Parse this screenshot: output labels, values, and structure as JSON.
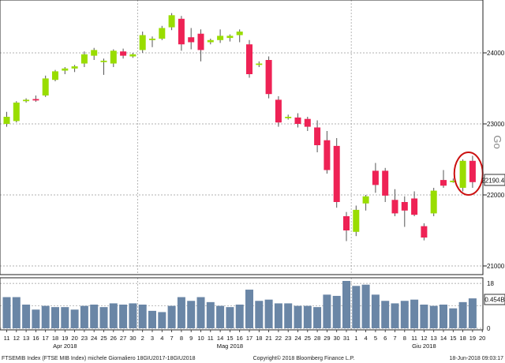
{
  "chart_data": {
    "type": "candlestick",
    "title": "",
    "price_axis": {
      "min": 20900,
      "max": 24700,
      "ticks": [
        21000,
        22000,
        23000,
        24000
      ],
      "last_value_label": "22190.45",
      "side_label": "Go"
    },
    "volume_axis": {
      "min": 0,
      "max": 19,
      "ticks": [
        18,
        0
      ],
      "tick_labels": [
        "18",
        "0"
      ],
      "extra_label": "0.454B"
    },
    "x_tick_labels": [
      "11",
      "12",
      "13",
      "16",
      "17",
      "18",
      "19",
      "20",
      "23",
      "24",
      "25",
      "26",
      "27",
      "30",
      "2",
      "3",
      "4",
      "7",
      "8",
      "9",
      "10",
      "11",
      "14",
      "15",
      "16",
      "17",
      "18",
      "21",
      "22",
      "23",
      "24",
      "25",
      "28",
      "29",
      "30",
      "31",
      "1",
      "4",
      "5",
      "6",
      "7",
      "8",
      "11",
      "12",
      "13",
      "14",
      "15",
      "18",
      "19",
      "20"
    ],
    "month_labels": [
      {
        "label": "Apr 2018",
        "at": 6
      },
      {
        "label": "Mag 2018",
        "at": 23
      },
      {
        "label": "Giu 2018",
        "at": 43
      }
    ],
    "candles": [
      {
        "open": 23000,
        "high": 23170,
        "low": 22960,
        "close": 23100
      },
      {
        "open": 23040,
        "high": 23320,
        "low": 23020,
        "close": 23300
      },
      {
        "open": 23320,
        "high": 23360,
        "low": 23300,
        "close": 23340
      },
      {
        "open": 23350,
        "high": 23400,
        "low": 23310,
        "close": 23330
      },
      {
        "open": 23400,
        "high": 23680,
        "low": 23380,
        "close": 23640
      },
      {
        "open": 23620,
        "high": 23760,
        "low": 23600,
        "close": 23740
      },
      {
        "open": 23750,
        "high": 23800,
        "low": 23700,
        "close": 23780
      },
      {
        "open": 23780,
        "high": 23830,
        "low": 23730,
        "close": 23810
      },
      {
        "open": 23850,
        "high": 24020,
        "low": 23800,
        "close": 23980
      },
      {
        "open": 23960,
        "high": 24070,
        "low": 23900,
        "close": 24040
      },
      {
        "open": 23870,
        "high": 23920,
        "low": 23690,
        "close": 23890
      },
      {
        "open": 23850,
        "high": 24050,
        "low": 23800,
        "close": 24030
      },
      {
        "open": 24020,
        "high": 24060,
        "low": 23920,
        "close": 23960
      },
      {
        "open": 23950,
        "high": 24000,
        "low": 23930,
        "close": 23980
      },
      {
        "open": 24040,
        "high": 24300,
        "low": 24000,
        "close": 24250
      },
      {
        "open": 24180,
        "high": 24230,
        "low": 24080,
        "close": 24200
      },
      {
        "open": 24200,
        "high": 24380,
        "low": 24180,
        "close": 24350
      },
      {
        "open": 24360,
        "high": 24560,
        "low": 24320,
        "close": 24530
      },
      {
        "open": 24480,
        "high": 24520,
        "low": 24030,
        "close": 24120
      },
      {
        "open": 24220,
        "high": 24350,
        "low": 24050,
        "close": 24150
      },
      {
        "open": 24270,
        "high": 24330,
        "low": 23880,
        "close": 24040
      },
      {
        "open": 24150,
        "high": 24200,
        "low": 24120,
        "close": 24180
      },
      {
        "open": 24180,
        "high": 24330,
        "low": 24140,
        "close": 24240
      },
      {
        "open": 24210,
        "high": 24260,
        "low": 24160,
        "close": 24240
      },
      {
        "open": 24250,
        "high": 24330,
        "low": 24150,
        "close": 24300
      },
      {
        "open": 24120,
        "high": 24180,
        "low": 23650,
        "close": 23700
      },
      {
        "open": 23830,
        "high": 23880,
        "low": 23800,
        "close": 23850
      },
      {
        "open": 23900,
        "high": 23950,
        "low": 23360,
        "close": 23420
      },
      {
        "open": 23340,
        "high": 23390,
        "low": 22960,
        "close": 23020
      },
      {
        "open": 23080,
        "high": 23130,
        "low": 23060,
        "close": 23100
      },
      {
        "open": 23090,
        "high": 23150,
        "low": 22950,
        "close": 23000
      },
      {
        "open": 23070,
        "high": 23100,
        "low": 22900,
        "close": 22960
      },
      {
        "open": 22950,
        "high": 23050,
        "low": 22600,
        "close": 22700
      },
      {
        "open": 22770,
        "high": 22900,
        "low": 22300,
        "close": 22350
      },
      {
        "open": 22690,
        "high": 22800,
        "low": 21820,
        "close": 21900
      },
      {
        "open": 21700,
        "high": 21760,
        "low": 21350,
        "close": 21500
      },
      {
        "open": 21480,
        "high": 21850,
        "low": 21420,
        "close": 21790
      },
      {
        "open": 21880,
        "high": 22000,
        "low": 21780,
        "close": 21980
      },
      {
        "open": 22340,
        "high": 22450,
        "low": 22030,
        "close": 22140
      },
      {
        "open": 22340,
        "high": 22380,
        "low": 21900,
        "close": 21990
      },
      {
        "open": 21930,
        "high": 22080,
        "low": 21700,
        "close": 21740
      },
      {
        "open": 21900,
        "high": 21980,
        "low": 21550,
        "close": 21780
      },
      {
        "open": 21950,
        "high": 22050,
        "low": 21700,
        "close": 21720
      },
      {
        "open": 21560,
        "high": 21600,
        "low": 21360,
        "close": 21400
      },
      {
        "open": 21740,
        "high": 22100,
        "low": 21700,
        "close": 22060
      },
      {
        "open": 22210,
        "high": 22350,
        "low": 22100,
        "close": 22130
      },
      {
        "open": 22180,
        "high": 22230,
        "low": 22170,
        "close": 22200
      },
      {
        "open": 22100,
        "high": 22500,
        "low": 22050,
        "close": 22480
      },
      {
        "open": 22480,
        "high": 22550,
        "low": 22100,
        "close": 22180
      }
    ],
    "volume": [
      12.5,
      12.5,
      9.5,
      7.5,
      9,
      8.5,
      8.5,
      7.5,
      9,
      9.5,
      8.5,
      10,
      9.5,
      10,
      9.5,
      7,
      6.5,
      9,
      12.5,
      11,
      12.5,
      10.5,
      9,
      8.5,
      9.5,
      15.5,
      11,
      11.5,
      10,
      10,
      9,
      9,
      8.5,
      13.5,
      13,
      19,
      17,
      17.5,
      13.5,
      11,
      10,
      11,
      11.5,
      9.5,
      9,
      9.5,
      8,
      10.5,
      12
    ],
    "colors": {
      "up": "#99dd00",
      "down": "#ee2255",
      "volume": "#6a86a6",
      "annotation": "#cc1111"
    },
    "annotation": {
      "type": "circle",
      "around_candles": [
        47,
        48
      ]
    },
    "footer": {
      "left": "FTSEMIB Index (FTSE MIB Index)  michele  Giornaliero 18GIU2017-18GIU2018",
      "center": "Copyright© 2018 Bloomberg Finance L.P.",
      "right": "18-Jun-2018 09:03:17"
    }
  }
}
